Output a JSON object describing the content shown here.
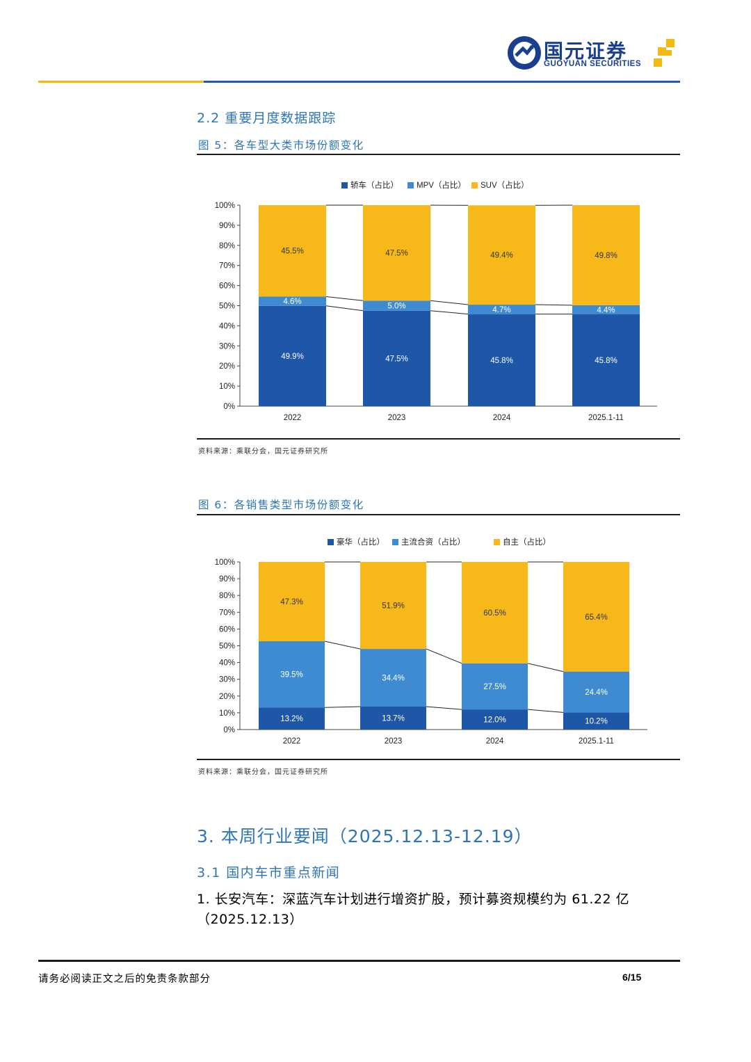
{
  "header": {
    "logo_cn": "国元证券",
    "logo_en": "GUOYUAN SECURITIES"
  },
  "section_2_2": "2.2 重要月度数据跟踪",
  "figure5": {
    "title": "图 5：各车型大类市场份额变化",
    "source": "资料来源：乘联分会，国元证券研究所"
  },
  "figure6": {
    "title": "图 6：各销售类型市场份额变化",
    "source": "资料来源：乘联分会，国元证券研究所"
  },
  "section_3": "3. 本周行业要闻（2025.12.13-12.19）",
  "section_3_1": "3.1 国内车市重点新闻",
  "news_item_1": "1.  长安汽车：深蓝汽车计划进行增资扩股，预计募资规模约为 61.22 亿（2025.12.13）",
  "footer": {
    "disclaimer": "请务必阅读正文之后的免责条款部分",
    "page": "6/15"
  },
  "colors": {
    "dark_blue": "#1f57a8",
    "mid_blue": "#3f8bd2",
    "yellow": "#f7b919",
    "heading_blue": "#2e75b6"
  },
  "chart_data": [
    {
      "type": "bar",
      "stacked": true,
      "categories": [
        "2022",
        "2023",
        "2024",
        "2025.1-11"
      ],
      "series": [
        {
          "name": "轿车（占比）",
          "color": "#1f57a8",
          "values": [
            49.9,
            47.5,
            45.8,
            45.8
          ],
          "labels": [
            "49.9%",
            "47.5%",
            "45.8%",
            "45.8%"
          ]
        },
        {
          "name": "MPV（占比）",
          "color": "#3f8bd2",
          "values": [
            4.6,
            5.0,
            4.7,
            4.4
          ],
          "labels": [
            "4.6%",
            "5.0%",
            "4.7%",
            "4.4%"
          ]
        },
        {
          "name": "SUV（占比）",
          "color": "#f7b919",
          "values": [
            45.5,
            47.5,
            49.4,
            49.8
          ],
          "labels": [
            "45.5%",
            "47.5%",
            "49.4%",
            "49.8%"
          ]
        }
      ],
      "yticks": [
        "0%",
        "10%",
        "20%",
        "30%",
        "40%",
        "50%",
        "60%",
        "70%",
        "80%",
        "90%",
        "100%"
      ],
      "ylim": [
        0,
        100
      ],
      "legend": "top-center",
      "grid": false
    },
    {
      "type": "bar",
      "stacked": true,
      "categories": [
        "2022",
        "2023",
        "2024",
        "2025.1-11"
      ],
      "series": [
        {
          "name": "豪华（占比）",
          "color": "#1f57a8",
          "values": [
            13.2,
            13.7,
            12.0,
            10.2
          ],
          "labels": [
            "13.2%",
            "13.7%",
            "12.0%",
            "10.2%"
          ]
        },
        {
          "name": "主流合资（占比）",
          "color": "#3f8bd2",
          "values": [
            39.5,
            34.4,
            27.5,
            24.4
          ],
          "labels": [
            "39.5%",
            "34.4%",
            "27.5%",
            "24.4%"
          ]
        },
        {
          "name": "自主（占比）",
          "color": "#f7b919",
          "values": [
            47.3,
            51.9,
            60.5,
            65.4
          ],
          "labels": [
            "47.3%",
            "51.9%",
            "60.5%",
            "65.4%"
          ]
        }
      ],
      "yticks": [
        "0%",
        "10%",
        "20%",
        "30%",
        "40%",
        "50%",
        "60%",
        "70%",
        "80%",
        "90%",
        "100%"
      ],
      "ylim": [
        0,
        100
      ],
      "legend": "top-center",
      "grid": false
    }
  ]
}
